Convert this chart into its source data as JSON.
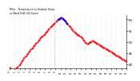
{
  "title": "Milw... Temperature vs Outdoor Temp. vs Wind\nChill (24 Hours)",
  "background_color": "#ffffff",
  "plot_bg_color": "#ffffff",
  "grid_color": "#cccccc",
  "line1_color": "#ff0000",
  "line2_color": "#0000ff",
  "ylim": [
    38,
    62
  ],
  "yticks": [
    40,
    45,
    50,
    55,
    60
  ],
  "vline_pos": 0.38,
  "vline_color": "#aaaaaa",
  "temp_data": [
    38.5,
    38.0,
    37.5,
    37.0,
    37.2,
    37.5,
    37.8,
    38.0,
    38.5,
    39.0,
    39.5,
    40.0,
    40.5,
    41.2,
    41.8,
    42.5,
    43.0,
    43.5,
    44.0,
    44.5,
    45.0,
    45.5,
    46.0,
    46.5,
    47.0,
    47.5,
    48.0,
    48.5,
    49.0,
    49.5,
    50.0,
    50.5,
    51.0,
    51.5,
    52.0,
    52.5,
    52.8,
    53.0,
    53.5,
    54.0,
    54.5,
    55.0,
    55.5,
    56.0,
    56.5,
    57.0,
    57.5,
    57.8,
    58.0,
    58.5,
    59.0,
    59.5,
    59.8,
    60.0,
    60.2,
    60.5,
    60.8,
    60.5,
    60.2,
    59.8,
    59.5,
    59.0,
    58.5,
    58.0,
    57.5,
    57.0,
    56.5,
    56.0,
    55.5,
    55.0,
    54.5,
    54.2,
    53.8,
    53.5,
    53.2,
    53.0,
    52.8,
    52.5,
    52.0,
    51.5,
    51.0,
    50.5,
    50.0,
    49.5,
    49.0,
    49.2,
    49.5,
    49.8,
    50.0,
    50.2,
    50.5,
    50.2,
    50.0,
    49.8,
    49.5,
    49.2,
    49.0,
    48.8,
    48.5,
    48.2,
    48.0,
    47.8,
    47.5,
    47.2,
    47.0,
    46.8,
    46.5,
    46.2,
    46.0,
    45.8,
    45.5,
    45.2,
    45.0,
    44.8,
    44.5,
    44.2,
    44.0,
    43.8,
    43.5,
    43.2,
    43.0,
    42.8,
    42.5,
    42.2,
    42.0,
    41.8,
    41.5,
    41.2
  ],
  "wind_data": [
    null,
    null,
    null,
    null,
    null,
    null,
    null,
    null,
    null,
    null,
    null,
    null,
    null,
    null,
    null,
    null,
    null,
    null,
    null,
    null,
    null,
    null,
    null,
    null,
    null,
    null,
    null,
    null,
    null,
    null,
    null,
    null,
    null,
    null,
    null,
    null,
    null,
    null,
    null,
    null,
    null,
    null,
    null,
    null,
    null,
    null,
    null,
    null,
    null,
    null,
    null,
    null,
    null,
    60.0,
    60.3,
    60.5,
    60.8,
    60.5,
    60.2,
    59.8,
    59.5,
    59.0,
    58.5,
    58.2,
    null,
    null,
    null,
    null,
    null,
    null,
    null,
    null,
    null,
    null,
    null,
    null,
    null,
    null,
    null,
    null,
    null,
    null,
    null,
    null,
    null,
    null,
    null,
    null,
    null,
    null,
    null,
    null,
    null,
    null,
    null,
    null,
    null,
    null,
    null,
    null,
    null,
    null,
    null,
    null,
    null,
    null,
    null,
    null,
    null,
    null,
    null,
    null,
    null,
    null,
    null,
    null,
    null,
    null,
    null,
    null,
    null,
    null,
    null,
    null,
    null,
    null,
    null,
    null
  ],
  "x_tick_count": 24,
  "x_tick_labels": [
    "0",
    "1",
    "2",
    "3",
    "4",
    "5",
    "6",
    "7",
    "8",
    "9",
    "10",
    "11",
    "12",
    "13",
    "14",
    "15",
    "16",
    "17",
    "18",
    "19",
    "20",
    "21",
    "22",
    "23"
  ]
}
